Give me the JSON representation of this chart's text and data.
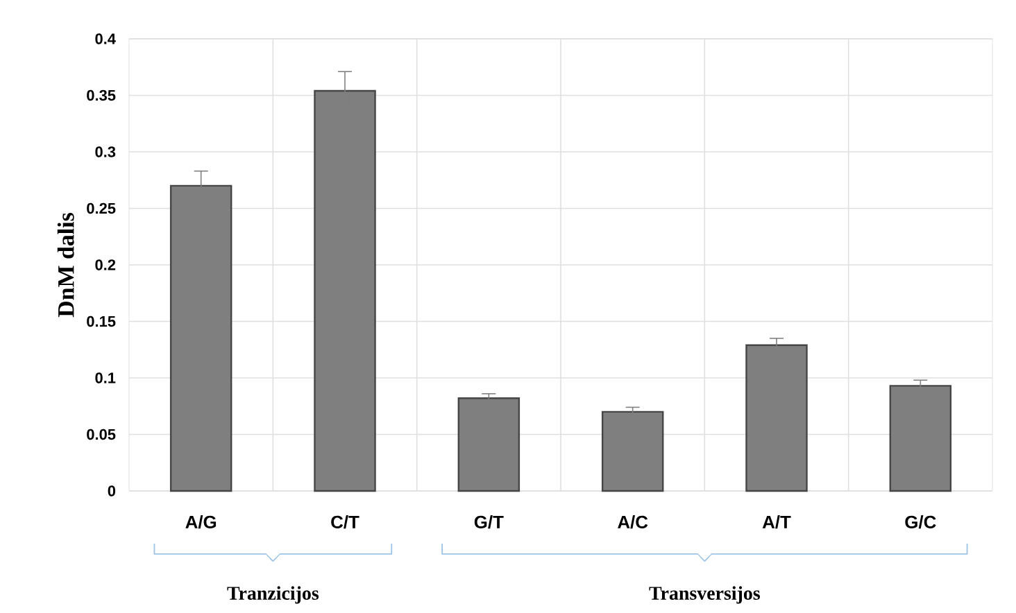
{
  "chart_data": {
    "type": "bar",
    "ylabel": "DnM dalis",
    "categories": [
      "A/G",
      "C/T",
      "G/T",
      "A/C",
      "A/T",
      "G/C"
    ],
    "values": [
      0.27,
      0.354,
      0.082,
      0.07,
      0.129,
      0.093
    ],
    "errors": [
      0.013,
      0.017,
      0.004,
      0.004,
      0.006,
      0.005
    ],
    "color": "#7f7f7f",
    "ylim": [
      0,
      0.4
    ],
    "yticks": [
      0,
      0.05,
      0.1,
      0.15,
      0.2,
      0.25,
      0.3,
      0.35,
      0.4
    ],
    "grid": true,
    "annotations": [
      "Tranzicijos",
      "Transversijos"
    ]
  }
}
